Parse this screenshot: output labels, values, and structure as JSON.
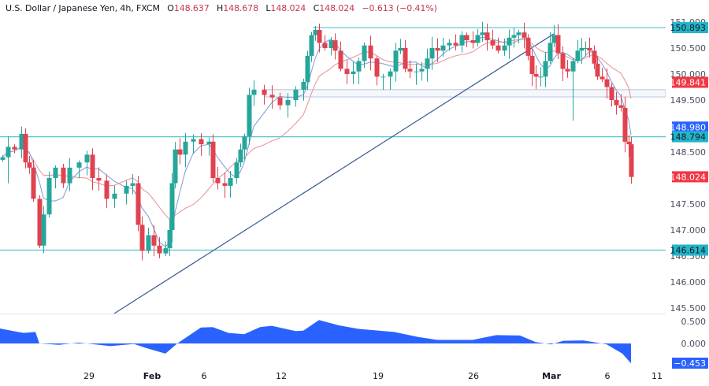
{
  "header": {
    "symbol": "U.S. Dollar / Japanese Yen, 4h, FXCM",
    "open_label": "O",
    "open": "148.637",
    "high_label": "H",
    "high": "148.678",
    "low_label": "L",
    "low": "148.024",
    "close_label": "C",
    "close": "148.024",
    "change": "−0.613 (−0.41%)"
  },
  "colors": {
    "bull": "#26a69a",
    "bull_dark": "#1e8a70",
    "bear": "#e0424f",
    "level_line": "#55c3d1",
    "level_badge": "#22b5c9",
    "trendline": "#3a5893",
    "ma_fast": "#8aa2d8",
    "ma_slow": "#e8999c",
    "oscillator": "#2962ff",
    "zone": "#b8c6dc"
  },
  "price_axis": {
    "ticks": [
      "151.000",
      "150.500",
      "150.000",
      "149.500",
      "148.500",
      "147.500",
      "147.000",
      "146.500",
      "146.000",
      "145.500"
    ],
    "badges": [
      {
        "label": "150.893",
        "type": "level"
      },
      {
        "label": "149.841",
        "type": "ma_slow"
      },
      {
        "label": "148.980",
        "type": "ma_fast"
      },
      {
        "label": "148.794",
        "type": "level"
      },
      {
        "label": "148.024",
        "type": "last_price"
      },
      {
        "label": "146.614",
        "type": "level"
      }
    ]
  },
  "oscillator_axis": {
    "ticks": [
      "0.500",
      "0.000"
    ],
    "badge": "−0.453"
  },
  "time_axis": {
    "labels": [
      {
        "label": "29",
        "bold": false
      },
      {
        "label": "Feb",
        "bold": true
      },
      {
        "label": "6",
        "bold": false
      },
      {
        "label": "12",
        "bold": false
      },
      {
        "label": "19",
        "bold": false
      },
      {
        "label": "26",
        "bold": false
      },
      {
        "label": "Mar",
        "bold": true
      },
      {
        "label": "6",
        "bold": false
      },
      {
        "label": "11",
        "bold": false
      }
    ]
  },
  "chart_data": {
    "type": "candlestick",
    "title": "U.S. Dollar / Japanese Yen, 4h, FXCM",
    "symbol": "USDJPY",
    "timeframe": "4h",
    "ohlc_last": {
      "open": 148.637,
      "high": 148.678,
      "low": 148.024,
      "close": 148.024,
      "change": -0.613,
      "change_pct": -0.41
    },
    "x_ticks": [
      "29",
      "Feb",
      "6",
      "12",
      "19",
      "26",
      "Mar",
      "6",
      "11"
    ],
    "y_ticks": [
      145.5,
      146.0,
      146.5,
      147.0,
      147.5,
      148.0,
      148.5,
      149.0,
      149.5,
      150.0,
      150.5,
      151.0
    ],
    "ylim": [
      145.45,
      151.05
    ],
    "horizontal_levels": [
      150.893,
      148.794,
      146.614
    ],
    "zone": {
      "from": 149.56,
      "to": 149.7,
      "start": "Feb 9"
    },
    "trendline": {
      "from": {
        "x": "Feb 1",
        "price": 145.5
      },
      "to": {
        "x": "Feb 29",
        "price": 150.86
      }
    },
    "moving_averages": [
      {
        "name": "fast MA",
        "last": 148.98,
        "color": "#8aa2d8"
      },
      {
        "name": "slow MA",
        "last": 149.841,
        "color": "#e8999c"
      }
    ],
    "oscillator": {
      "type": "area",
      "ylim": [
        -0.6,
        0.5
      ],
      "y_ticks": [
        0.5,
        0.0
      ],
      "last": -0.453,
      "profile": [
        [
          0,
          0.34
        ],
        [
          20,
          0.27
        ],
        [
          30,
          0.24
        ],
        [
          45,
          0.26
        ],
        [
          50,
          0.0
        ],
        [
          75,
          -0.03
        ],
        [
          100,
          0.02
        ],
        [
          120,
          -0.02
        ],
        [
          140,
          -0.06
        ],
        [
          170,
          -0.01
        ],
        [
          185,
          -0.1
        ],
        [
          210,
          -0.23
        ],
        [
          225,
          0.0
        ],
        [
          255,
          0.36
        ],
        [
          270,
          0.37
        ],
        [
          290,
          0.24
        ],
        [
          310,
          0.21
        ],
        [
          330,
          0.37
        ],
        [
          345,
          0.4
        ],
        [
          375,
          0.28
        ],
        [
          385,
          0.29
        ],
        [
          405,
          0.53
        ],
        [
          430,
          0.41
        ],
        [
          455,
          0.33
        ],
        [
          500,
          0.26
        ],
        [
          530,
          0.15
        ],
        [
          555,
          0.08
        ],
        [
          600,
          0.08
        ],
        [
          630,
          0.19
        ],
        [
          660,
          0.18
        ],
        [
          680,
          0.03
        ],
        [
          700,
          -0.02
        ],
        [
          715,
          0.06
        ],
        [
          740,
          0.07
        ],
        [
          770,
          -0.02
        ],
        [
          790,
          -0.23
        ],
        [
          801,
          -0.45
        ]
      ]
    }
  }
}
